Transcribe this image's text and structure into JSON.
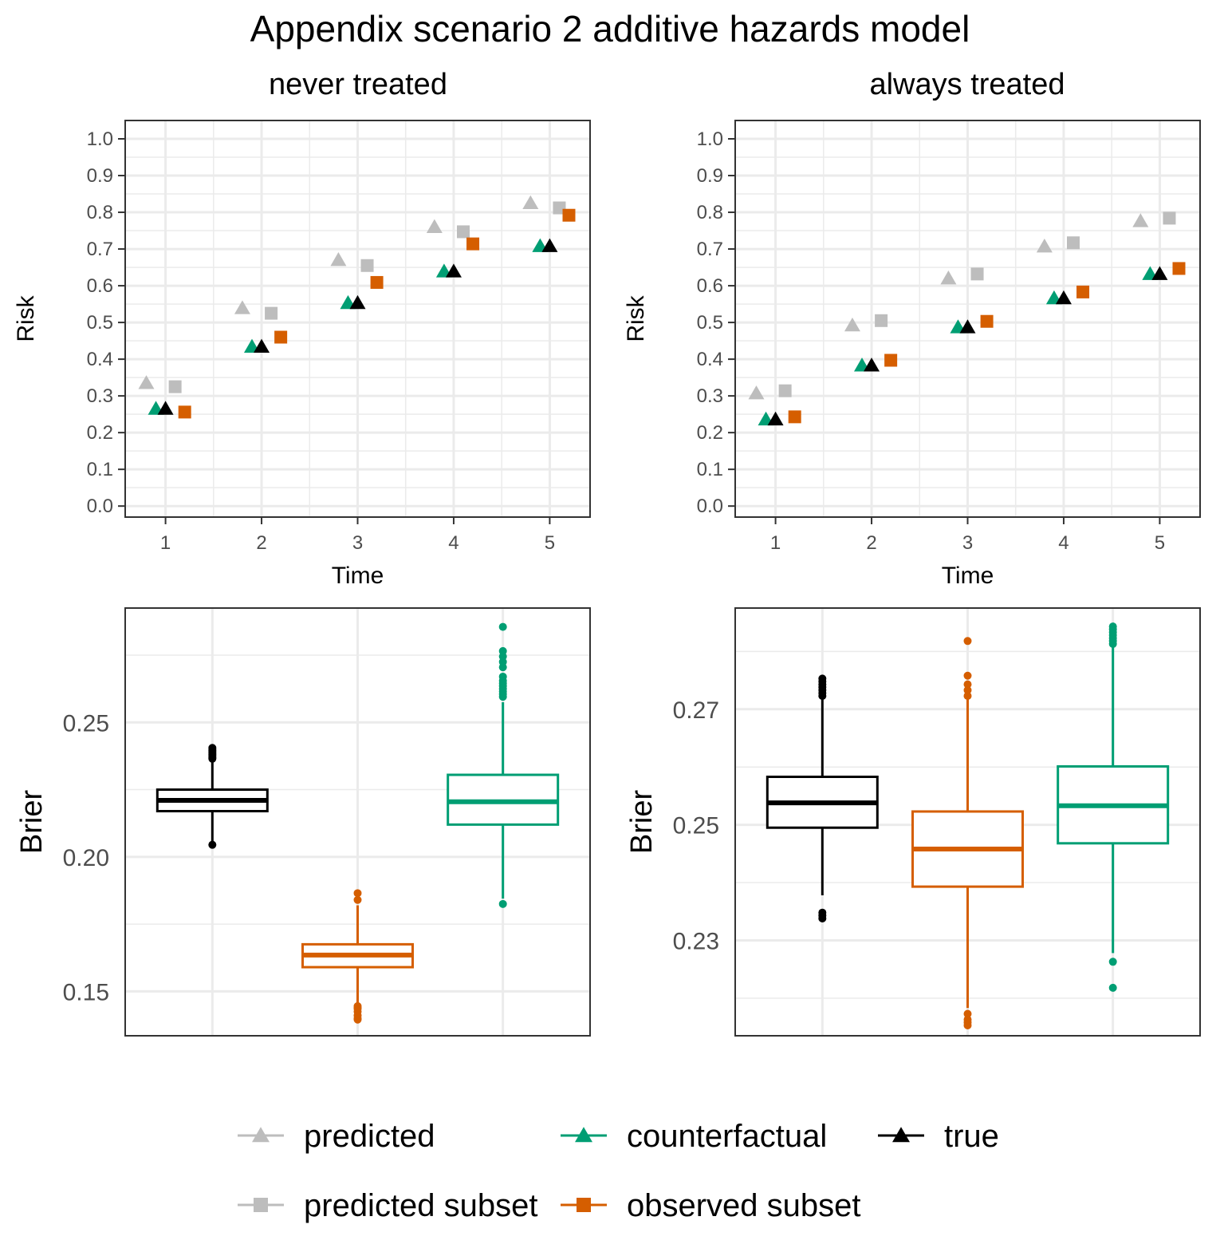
{
  "title": "Appendix scenario 2 additive hazards model",
  "colors": {
    "predicted": "#bdbdbd",
    "predicted_subset": "#bdbdbd",
    "counterfactual": "#009e73",
    "observed_subset": "#d55e00",
    "true": "#000000",
    "grid": "#ebebeb",
    "panel_border": "#333333"
  },
  "legend": [
    {
      "key": "predicted",
      "label": "predicted",
      "shape": "triangle"
    },
    {
      "key": "counterfactual",
      "label": "counterfactual",
      "shape": "triangle"
    },
    {
      "key": "true",
      "label": "true",
      "shape": "triangle"
    },
    {
      "key": "predicted_subset",
      "label": "predicted subset",
      "shape": "square"
    },
    {
      "key": "observed_subset",
      "label": "observed subset",
      "shape": "square"
    }
  ],
  "chart_data": [
    {
      "type": "scatter",
      "panel": "never treated",
      "title": "never treated",
      "xlabel": "Time",
      "ylabel": "Risk",
      "categories": [
        "1",
        "2",
        "3",
        "4",
        "5"
      ],
      "ylim": [
        -0.03,
        1.05
      ],
      "yticks": [
        "0.0",
        "0.1",
        "0.2",
        "0.3",
        "0.4",
        "0.5",
        "0.6",
        "0.7",
        "0.8",
        "0.9",
        "1.0"
      ],
      "series": [
        {
          "name": "predicted",
          "key": "predicted",
          "shape": "triangle",
          "dodge": -0.2,
          "values": [
            0.333,
            0.537,
            0.668,
            0.758,
            0.823
          ]
        },
        {
          "name": "counterfactual",
          "key": "counterfactual",
          "shape": "triangle",
          "dodge": -0.1,
          "values": [
            0.263,
            0.432,
            0.551,
            0.637,
            0.706
          ]
        },
        {
          "name": "true",
          "key": "true",
          "shape": "triangle",
          "dodge": 0.0,
          "values": [
            0.263,
            0.432,
            0.551,
            0.637,
            0.706
          ]
        },
        {
          "name": "predicted subset",
          "key": "predicted_subset",
          "shape": "square",
          "dodge": 0.1,
          "values": [
            0.325,
            0.525,
            0.655,
            0.747,
            0.812
          ]
        },
        {
          "name": "observed subset",
          "key": "observed_subset",
          "shape": "square",
          "dodge": 0.2,
          "values": [
            0.256,
            0.46,
            0.609,
            0.714,
            0.792
          ]
        }
      ]
    },
    {
      "type": "scatter",
      "panel": "always treated",
      "title": "always treated",
      "xlabel": "Time",
      "ylabel": "Risk",
      "categories": [
        "1",
        "2",
        "3",
        "4",
        "5"
      ],
      "ylim": [
        -0.03,
        1.05
      ],
      "yticks": [
        "0.0",
        "0.1",
        "0.2",
        "0.3",
        "0.4",
        "0.5",
        "0.6",
        "0.7",
        "0.8",
        "0.9",
        "1.0"
      ],
      "series": [
        {
          "name": "predicted",
          "key": "predicted",
          "shape": "triangle",
          "dodge": -0.2,
          "values": [
            0.305,
            0.49,
            0.618,
            0.705,
            0.774
          ]
        },
        {
          "name": "counterfactual",
          "key": "counterfactual",
          "shape": "triangle",
          "dodge": -0.1,
          "values": [
            0.234,
            0.381,
            0.485,
            0.564,
            0.63
          ]
        },
        {
          "name": "true",
          "key": "true",
          "shape": "triangle",
          "dodge": 0.0,
          "values": [
            0.234,
            0.381,
            0.485,
            0.564,
            0.63
          ]
        },
        {
          "name": "predicted subset",
          "key": "predicted_subset",
          "shape": "square",
          "dodge": 0.1,
          "values": [
            0.314,
            0.505,
            0.632,
            0.717,
            0.784
          ]
        },
        {
          "name": "observed subset",
          "key": "observed_subset",
          "shape": "square",
          "dodge": 0.2,
          "values": [
            0.243,
            0.397,
            0.503,
            0.583,
            0.647
          ]
        }
      ]
    },
    {
      "type": "box",
      "panel": "never treated",
      "ylabel": "Brier",
      "ylim": [
        0.1335,
        0.2925
      ],
      "yticks": [
        0.15,
        0.2,
        0.25
      ],
      "ytick_labels": [
        "0.15",
        "0.20",
        "0.25"
      ],
      "minor_yticks": [
        0.175,
        0.225,
        0.275
      ],
      "boxes": [
        {
          "key": "true",
          "q1": 0.217,
          "median": 0.221,
          "q3": 0.225,
          "whisker_low": 0.2055,
          "whisker_high": 0.236,
          "outliers": [
            0.2045,
            0.2365,
            0.237,
            0.2375,
            0.238,
            0.2385,
            0.239,
            0.2395,
            0.24,
            0.2405
          ]
        },
        {
          "key": "observed_subset",
          "q1": 0.159,
          "median": 0.1635,
          "q3": 0.1675,
          "whisker_low": 0.1455,
          "whisker_high": 0.182,
          "outliers": [
            0.1395,
            0.14,
            0.141,
            0.1425,
            0.1435,
            0.144,
            0.1445,
            0.184,
            0.1865
          ]
        },
        {
          "key": "counterfactual",
          "q1": 0.212,
          "median": 0.2205,
          "q3": 0.2305,
          "whisker_low": 0.1845,
          "whisker_high": 0.2575,
          "outliers": [
            0.1825,
            0.2595,
            0.2605,
            0.2615,
            0.2625,
            0.2635,
            0.2645,
            0.2655,
            0.267,
            0.2705,
            0.2725,
            0.2745,
            0.2765,
            0.2855
          ]
        }
      ]
    },
    {
      "type": "box",
      "panel": "always treated",
      "ylabel": "Brier",
      "ylim": [
        0.2135,
        0.2875
      ],
      "yticks": [
        0.23,
        0.25,
        0.27
      ],
      "ytick_labels": [
        "0.23",
        "0.25",
        "0.27"
      ],
      "minor_yticks": [
        0.22,
        0.24,
        0.26,
        0.28
      ],
      "boxes": [
        {
          "key": "true",
          "q1": 0.2495,
          "median": 0.2538,
          "q3": 0.2583,
          "whisker_low": 0.2378,
          "whisker_high": 0.2718,
          "outliers": [
            0.2338,
            0.2343,
            0.2348,
            0.2723,
            0.2728,
            0.2733,
            0.2738,
            0.2743,
            0.2748,
            0.2753
          ]
        },
        {
          "key": "observed_subset",
          "q1": 0.2393,
          "median": 0.2458,
          "q3": 0.2523,
          "whisker_low": 0.2183,
          "whisker_high": 0.2718,
          "outliers": [
            0.2153,
            0.2158,
            0.2163,
            0.2173,
            0.2723,
            0.2733,
            0.2743,
            0.2758,
            0.2818
          ]
        },
        {
          "key": "counterfactual",
          "q1": 0.2468,
          "median": 0.2533,
          "q3": 0.2601,
          "whisker_low": 0.2278,
          "whisker_high": 0.2808,
          "outliers": [
            0.2218,
            0.2263,
            0.2813,
            0.2818,
            0.2823,
            0.2828,
            0.2833,
            0.2838,
            0.2843
          ]
        }
      ]
    }
  ]
}
